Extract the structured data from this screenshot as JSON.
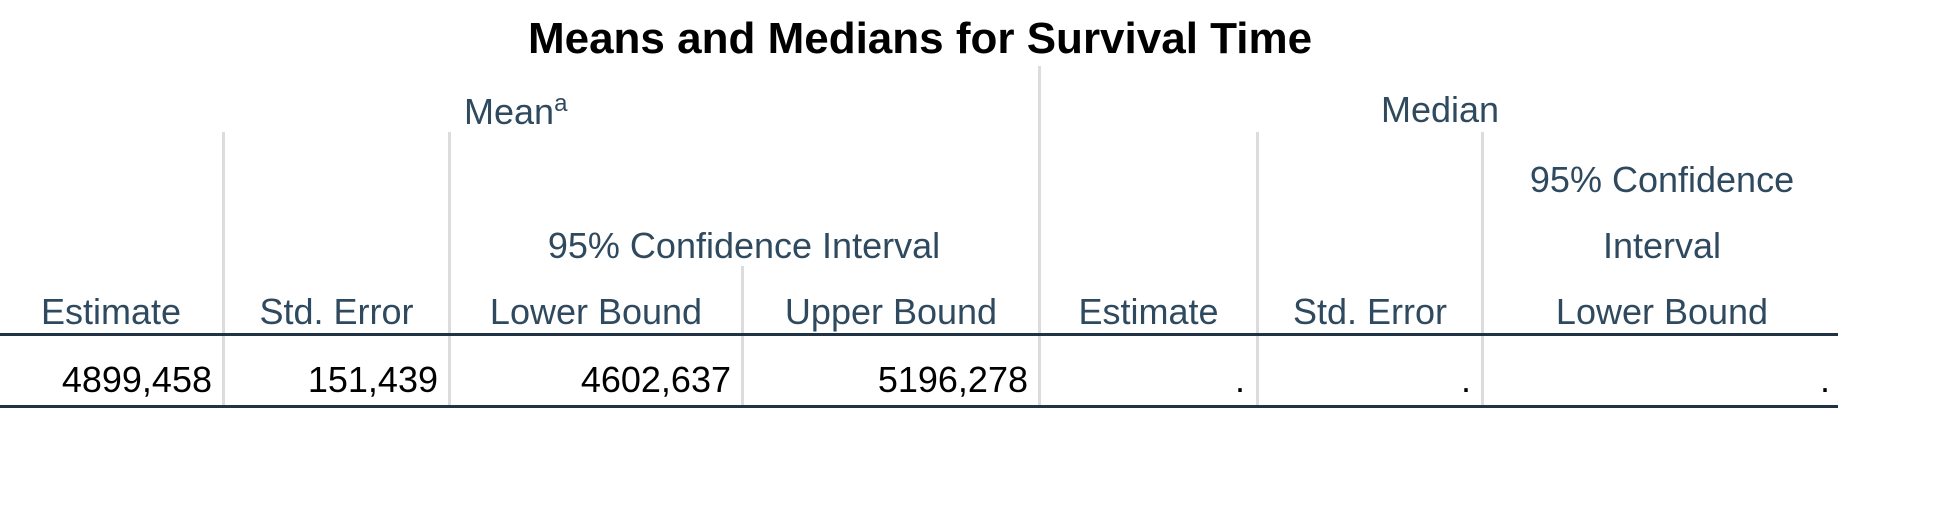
{
  "table": {
    "title": "Means and Medians for Survival Time",
    "groups": {
      "mean_label": "Mean",
      "mean_superscript": "a",
      "median_label": "Median"
    },
    "subgroups": {
      "mean_ci": "95% Confidence Interval",
      "median_ci_line1": "95% Confidence",
      "median_ci_line2": "Interval"
    },
    "columns": [
      "Estimate",
      "Std. Error",
      "Lower Bound",
      "Upper Bound",
      "Estimate",
      "Std. Error",
      "Lower Bound"
    ],
    "row": [
      "4899,458",
      "151,439",
      "4602,637",
      "5196,278",
      ".",
      ".",
      "."
    ]
  }
}
